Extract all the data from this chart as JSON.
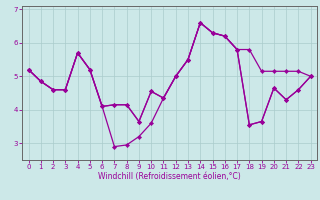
{
  "xlabel": "Windchill (Refroidissement éolien,°C)",
  "background_color": "#cce8e8",
  "grid_color": "#aacccc",
  "line_color": "#990099",
  "spine_color": "#666666",
  "x_values": [
    0,
    1,
    2,
    3,
    4,
    5,
    6,
    7,
    8,
    9,
    10,
    11,
    12,
    13,
    14,
    15,
    16,
    17,
    18,
    19,
    20,
    21,
    22,
    23
  ],
  "series1": [
    5.2,
    4.85,
    4.6,
    4.6,
    5.7,
    5.2,
    4.1,
    2.9,
    2.95,
    3.2,
    3.6,
    4.35,
    5.0,
    5.5,
    6.6,
    6.3,
    6.2,
    5.8,
    3.55,
    3.65,
    4.65,
    4.3,
    4.6,
    5.0
  ],
  "series2": [
    5.2,
    4.85,
    4.6,
    4.6,
    5.7,
    5.2,
    4.1,
    4.15,
    4.15,
    3.65,
    4.55,
    4.35,
    5.0,
    5.5,
    6.6,
    6.3,
    6.2,
    5.8,
    3.55,
    3.65,
    4.65,
    4.3,
    4.6,
    5.0
  ],
  "series3": [
    5.2,
    4.85,
    4.6,
    4.6,
    5.7,
    5.2,
    4.1,
    4.15,
    4.15,
    3.65,
    4.55,
    4.35,
    5.0,
    5.5,
    6.6,
    6.3,
    6.2,
    5.8,
    5.8,
    5.15,
    5.15,
    5.15,
    5.15,
    5.0
  ],
  "ylim": [
    2.5,
    7.1
  ],
  "xlim": [
    -0.5,
    23.5
  ],
  "yticks": [
    3,
    4,
    5,
    6,
    7
  ],
  "xticks": [
    0,
    1,
    2,
    3,
    4,
    5,
    6,
    7,
    8,
    9,
    10,
    11,
    12,
    13,
    14,
    15,
    16,
    17,
    18,
    19,
    20,
    21,
    22,
    23
  ],
  "xlabel_fontsize": 5.5,
  "tick_fontsize": 5.0,
  "linewidth": 0.9,
  "markersize": 2.2
}
